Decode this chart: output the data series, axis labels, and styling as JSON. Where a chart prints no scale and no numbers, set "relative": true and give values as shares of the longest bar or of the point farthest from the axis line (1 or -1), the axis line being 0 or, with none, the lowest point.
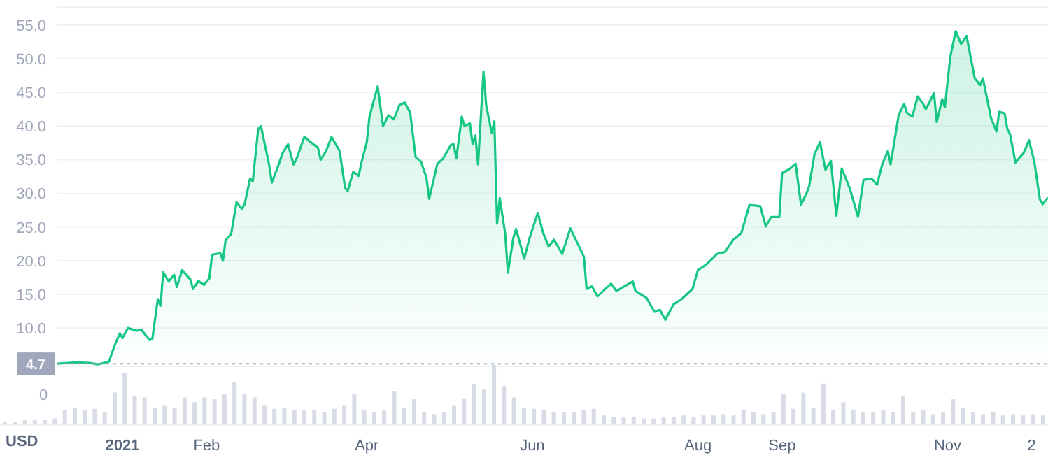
{
  "chart_data": [
    {
      "type": "area",
      "ylabel": "USD",
      "xlim": [
        "2020-12-08",
        "2021-12-08"
      ],
      "xticks": [
        {
          "value": "2021-01-01",
          "label": "2021"
        },
        {
          "value": "2021-02-01",
          "label": "Feb"
        },
        {
          "value": "2021-04-01",
          "label": "Apr"
        },
        {
          "value": "2021-06-01",
          "label": "Jun"
        },
        {
          "value": "2021-08-01",
          "label": "Aug"
        },
        {
          "value": "2021-09-01",
          "label": "Sep"
        },
        {
          "value": "2021-11-01",
          "label": "Nov"
        },
        {
          "value": "2021-12-02",
          "label": "2"
        }
      ],
      "ylim": [
        4.3,
        57.7
      ],
      "yticks": [
        {
          "value": 10,
          "label": "10.0"
        },
        {
          "value": 15,
          "label": "15.0"
        },
        {
          "value": 20,
          "label": "20.0"
        },
        {
          "value": 25,
          "label": "25.0"
        },
        {
          "value": 30,
          "label": "30.0"
        },
        {
          "value": 35,
          "label": "35.0"
        },
        {
          "value": 40,
          "label": "40.0"
        },
        {
          "value": 45,
          "label": "45.0"
        },
        {
          "value": 50,
          "label": "50.0"
        },
        {
          "value": 55,
          "label": "55.0"
        }
      ],
      "ref_lines": [
        {
          "axis": "y",
          "value": 4.7,
          "label": "4.7",
          "color": "#a1a7bb",
          "line_style": "dotted"
        }
      ],
      "series": [
        {
          "color": "#16c784",
          "x": [
            "2020-12-08",
            "2020-12-15",
            "2020-12-20",
            "2020-12-23",
            "2020-12-27",
            "2020-12-29",
            "2020-12-31",
            "2021-01-01",
            "2021-01-03",
            "2021-01-06",
            "2021-01-08",
            "2021-01-11",
            "2021-01-12",
            "2021-01-14",
            "2021-01-15",
            "2021-01-16",
            "2021-01-18",
            "2021-01-20",
            "2021-01-21",
            "2021-01-23",
            "2021-01-26",
            "2021-01-27",
            "2021-01-29",
            "2021-01-31",
            "2021-02-02",
            "2021-02-03",
            "2021-02-06",
            "2021-02-07",
            "2021-02-08",
            "2021-02-10",
            "2021-02-12",
            "2021-02-14",
            "2021-02-15",
            "2021-02-17",
            "2021-02-18",
            "2021-02-20",
            "2021-02-21",
            "2021-02-24",
            "2021-02-25",
            "2021-02-27",
            "2021-03-01",
            "2021-03-03",
            "2021-03-05",
            "2021-03-06",
            "2021-03-09",
            "2021-03-12",
            "2021-03-14",
            "2021-03-15",
            "2021-03-17",
            "2021-03-19",
            "2021-03-22",
            "2021-03-24",
            "2021-03-25",
            "2021-03-27",
            "2021-03-29",
            "2021-03-30",
            "2021-04-01",
            "2021-04-02",
            "2021-04-05",
            "2021-04-07",
            "2021-04-09",
            "2021-04-11",
            "2021-04-13",
            "2021-04-15",
            "2021-04-17",
            "2021-04-19",
            "2021-04-21",
            "2021-04-23",
            "2021-04-24",
            "2021-04-27",
            "2021-04-29",
            "2021-05-02",
            "2021-05-03",
            "2021-05-04",
            "2021-05-06",
            "2021-05-07",
            "2021-05-09",
            "2021-05-10",
            "2021-05-11",
            "2021-05-12",
            "2021-05-14",
            "2021-05-15",
            "2021-05-17",
            "2021-05-18",
            "2021-05-19",
            "2021-05-20",
            "2021-05-22",
            "2021-05-23",
            "2021-05-25",
            "2021-05-26",
            "2021-05-29",
            "2021-05-31",
            "2021-06-03",
            "2021-06-05",
            "2021-06-07",
            "2021-06-09",
            "2021-06-12",
            "2021-06-15",
            "2021-06-20",
            "2021-06-21",
            "2021-06-23",
            "2021-06-25",
            "2021-06-30",
            "2021-07-02",
            "2021-07-08",
            "2021-07-09",
            "2021-07-13",
            "2021-07-16",
            "2021-07-18",
            "2021-07-20",
            "2021-07-23",
            "2021-07-26",
            "2021-07-30",
            "2021-08-01",
            "2021-08-04",
            "2021-08-08",
            "2021-08-11",
            "2021-08-14",
            "2021-08-17",
            "2021-08-20",
            "2021-08-24",
            "2021-08-26",
            "2021-08-28",
            "2021-08-31",
            "2021-09-01",
            "2021-09-04",
            "2021-09-06",
            "2021-09-08",
            "2021-09-10",
            "2021-09-11",
            "2021-09-13",
            "2021-09-15",
            "2021-09-17",
            "2021-09-19",
            "2021-09-21",
            "2021-09-23",
            "2021-09-26",
            "2021-09-29",
            "2021-10-01",
            "2021-10-04",
            "2021-10-06",
            "2021-10-08",
            "2021-10-10",
            "2021-10-11",
            "2021-10-14",
            "2021-10-16",
            "2021-10-17",
            "2021-10-19",
            "2021-10-21",
            "2021-10-23",
            "2021-10-24",
            "2021-10-27",
            "2021-10-28",
            "2021-10-30",
            "2021-10-31",
            "2021-11-02",
            "2021-11-04",
            "2021-11-06",
            "2021-11-08",
            "2021-11-11",
            "2021-11-13",
            "2021-11-14",
            "2021-11-17",
            "2021-11-19",
            "2021-11-20",
            "2021-11-22",
            "2021-11-23",
            "2021-11-24",
            "2021-11-26",
            "2021-11-29",
            "2021-12-01",
            "2021-12-03",
            "2021-12-05",
            "2021-12-06",
            "2021-12-08"
          ],
          "values": [
            4.7,
            4.9,
            4.8,
            4.6,
            5.0,
            7.3,
            9.2,
            8.5,
            10.0,
            9.6,
            9.7,
            8.2,
            8.4,
            14.3,
            13.3,
            18.3,
            16.9,
            17.9,
            16.1,
            18.6,
            17.2,
            15.8,
            17.0,
            16.4,
            17.4,
            20.9,
            21.1,
            20.0,
            23.1,
            23.9,
            28.7,
            27.7,
            28.4,
            32.2,
            31.8,
            39.6,
            40.0,
            34.3,
            31.6,
            33.7,
            36.0,
            37.3,
            34.3,
            35.0,
            38.4,
            37.4,
            36.8,
            35.0,
            36.3,
            38.4,
            36.3,
            30.8,
            30.4,
            33.2,
            32.6,
            34.5,
            37.6,
            41.4,
            45.9,
            40.0,
            41.6,
            41.0,
            43.1,
            43.5,
            42.0,
            35.4,
            34.7,
            32.3,
            29.2,
            34.4,
            35.1,
            37.2,
            37.3,
            35.2,
            41.4,
            40.0,
            40.4,
            37.3,
            38.6,
            34.3,
            48.1,
            43.1,
            39.0,
            40.7,
            25.5,
            29.3,
            24.0,
            18.2,
            23.4,
            24.7,
            20.3,
            23.4,
            27.1,
            24.1,
            22.1,
            23.1,
            21.0,
            24.8,
            20.6,
            15.8,
            16.2,
            14.7,
            16.6,
            15.5,
            16.9,
            15.5,
            14.5,
            12.4,
            12.7,
            11.2,
            13.5,
            14.3,
            15.8,
            18.6,
            19.4,
            21.0,
            21.3,
            23.1,
            24.1,
            28.3,
            28.1,
            25.1,
            26.5,
            26.5,
            33.0,
            33.7,
            34.4,
            28.3,
            30.0,
            31.1,
            35.9,
            37.6,
            33.5,
            34.8,
            26.7,
            33.7,
            30.7,
            26.5,
            32.0,
            32.2,
            31.3,
            34.4,
            36.3,
            34.3,
            41.7,
            43.3,
            42.0,
            41.4,
            44.4,
            43.3,
            42.5,
            44.9,
            40.6,
            44.0,
            42.8,
            50.3,
            54.1,
            52.2,
            53.4,
            47.1,
            46.1,
            47.1,
            41.2,
            39.2,
            42.1,
            41.9,
            39.6,
            38.8,
            34.6,
            36.0,
            37.9,
            34.6,
            29.1,
            28.4,
            29.4
          ]
        }
      ],
      "grid": "y"
    },
    {
      "type": "bar",
      "relative": true,
      "annotations": [
        "0"
      ],
      "categories": [
        null,
        null,
        null,
        null,
        null,
        null,
        null,
        null,
        null,
        null,
        null,
        null,
        null,
        null,
        null,
        null,
        null,
        null,
        null,
        null,
        null,
        null,
        null,
        null,
        null,
        null,
        null,
        null,
        null,
        null,
        null,
        null,
        null,
        null,
        null,
        null,
        null,
        null,
        null,
        null,
        null,
        null,
        null,
        null,
        null,
        null,
        null,
        null,
        null,
        null,
        null,
        null,
        null,
        null,
        null,
        null,
        null,
        null,
        null,
        null,
        null,
        null,
        null,
        null,
        null,
        null,
        null,
        null,
        null,
        null,
        null,
        null,
        null,
        null,
        null,
        null,
        null,
        null,
        null,
        null,
        null,
        null,
        null,
        null,
        null,
        null,
        null,
        null,
        null,
        null,
        null,
        null,
        null,
        null,
        null,
        null,
        null,
        null,
        null,
        null,
        null,
        null,
        null,
        null,
        null
      ],
      "series": [
        {
          "color": "#d8dce6",
          "values": [
            0.05,
            0.05,
            0.08,
            0.08,
            0.08,
            0.11,
            0.25,
            0.29,
            0.25,
            0.27,
            0.22,
            0.54,
            0.86,
            0.48,
            0.46,
            0.29,
            0.32,
            0.29,
            0.46,
            0.38,
            0.46,
            0.43,
            0.51,
            0.72,
            0.51,
            0.46,
            0.32,
            0.27,
            0.29,
            0.25,
            0.25,
            0.25,
            0.22,
            0.27,
            0.32,
            0.51,
            0.25,
            0.22,
            0.25,
            0.57,
            0.29,
            0.43,
            0.22,
            0.18,
            0.22,
            0.32,
            0.43,
            0.68,
            0.59,
            1,
            0.65,
            0.46,
            0.29,
            0.27,
            0.25,
            0.22,
            0.22,
            0.22,
            0.25,
            0.27,
            0.16,
            0.14,
            0.14,
            0.14,
            0.11,
            0.11,
            0.13,
            0.13,
            0.16,
            0.14,
            0.16,
            0.16,
            0.18,
            0.16,
            0.25,
            0.22,
            0.18,
            0.22,
            0.51,
            0.27,
            0.54,
            0.29,
            0.69,
            0.25,
            0.38,
            0.25,
            0.22,
            0.22,
            0.25,
            0.22,
            0.48,
            0.22,
            0.25,
            0.18,
            0.22,
            0.43,
            0.29,
            0.22,
            0.18,
            0.22,
            0.16,
            0.18,
            0.16,
            0.18,
            0.16
          ]
        }
      ]
    }
  ]
}
